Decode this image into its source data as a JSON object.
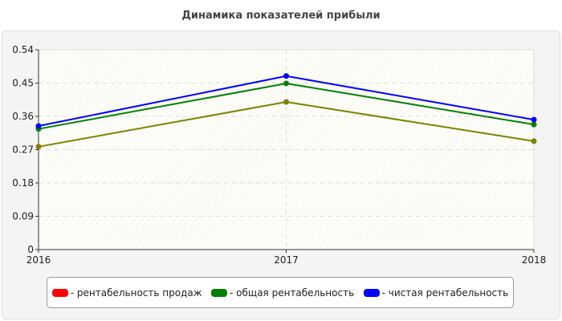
{
  "chart_data": {
    "type": "line",
    "title": "Динамика показателей прибыли",
    "categories": [
      "2016",
      "2017",
      "2018"
    ],
    "ylim": [
      0,
      0.54
    ],
    "yticks": [
      "0",
      "0.09",
      "0.18",
      "0.27",
      "0.36",
      "0.45",
      "0.54"
    ],
    "grid": true,
    "legend_placement": "bottom",
    "series": [
      {
        "name": "- рентабельность продаж",
        "legend_color": "#ff0000",
        "line_color": "#808000",
        "values": [
          0.278,
          0.399,
          0.293
        ]
      },
      {
        "name": "- общая рентабельность",
        "legend_color": "#008000",
        "line_color": "#008000",
        "values": [
          0.326,
          0.449,
          0.338
        ]
      },
      {
        "name": "- чистая рентабельность",
        "legend_color": "#0000ff",
        "line_color": "#0000ff",
        "values": [
          0.334,
          0.469,
          0.351
        ]
      }
    ]
  }
}
